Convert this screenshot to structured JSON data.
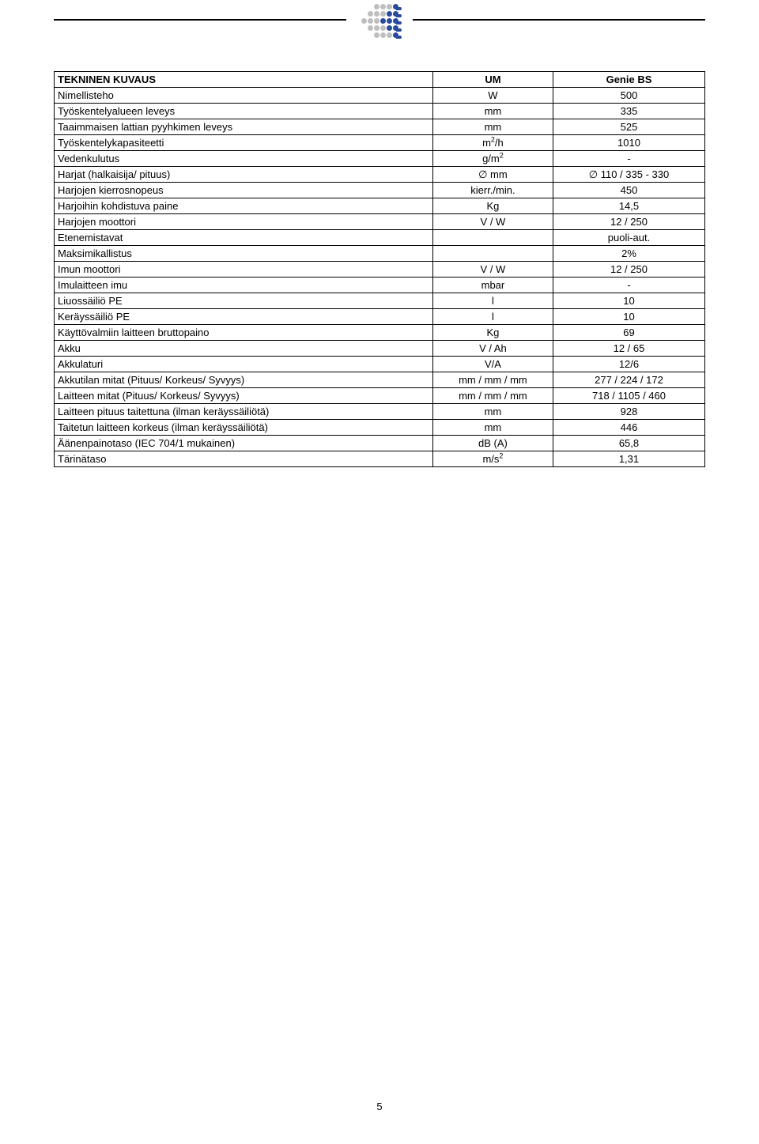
{
  "page_number": "5",
  "table": {
    "header": {
      "label": "TEKNINEN KUVAUS",
      "unit": "UM",
      "value": "Genie BS"
    },
    "rows": [
      {
        "label": "Nimellisteho",
        "unit": "W",
        "value": "500"
      },
      {
        "label": "Työskentelyalueen leveys",
        "unit": "mm",
        "value": "335"
      },
      {
        "label": "Taaimmaisen lattian pyyhkimen leveys",
        "unit": "mm",
        "value": "525"
      },
      {
        "label": "Työskentelykapasiteetti",
        "unit_html": "m<sup>2</sup>/h",
        "value": "1010"
      },
      {
        "label": "Vedenkulutus",
        "unit_html": "g/m<sup>2</sup>",
        "value": "-"
      },
      {
        "label": "Harjat (halkaisija/ pituus)",
        "unit": "∅ mm",
        "value": "∅ 110 / 335 - 330"
      },
      {
        "label": "Harjojen kierrosnopeus",
        "unit": "kierr./min.",
        "value": "450"
      },
      {
        "label": "Harjoihin kohdistuva paine",
        "unit": "Kg",
        "value": "14,5"
      },
      {
        "label": "Harjojen moottori",
        "unit": "V / W",
        "value": "12 / 250"
      },
      {
        "label": "Etenemistavat",
        "unit": "",
        "value": "puoli-aut."
      },
      {
        "label": "Maksimikallistus",
        "unit": "",
        "value": "2%"
      },
      {
        "label": "Imun moottori",
        "unit": "V / W",
        "value": "12 / 250"
      },
      {
        "label": "Imulaitteen imu",
        "unit": "mbar",
        "value": "-"
      },
      {
        "label": "Liuossäiliö PE",
        "unit": "l",
        "value": "10"
      },
      {
        "label": "Keräyssäiliö PE",
        "unit": "l",
        "value": "10"
      },
      {
        "label": "Käyttövalmiin laitteen bruttopaino",
        "unit": "Kg",
        "value": "69"
      },
      {
        "label": "Akku",
        "unit": "V / Ah",
        "value": "12 / 65"
      },
      {
        "label": "Akkulaturi",
        "unit": "V/A",
        "value": "12/6"
      },
      {
        "label": "Akkutilan mitat (Pituus/ Korkeus/ Syvyys)",
        "unit": "mm / mm / mm",
        "value": "277 / 224 / 172"
      },
      {
        "label": "Laitteen mitat (Pituus/ Korkeus/ Syvyys)",
        "unit": "mm / mm / mm",
        "value": "718 / 1105 / 460"
      },
      {
        "label": "Laitteen pituus taitettuna (ilman keräyssäiliötä)",
        "unit": "mm",
        "value": "928"
      },
      {
        "label": "Taitetun laitteen korkeus (ilman keräyssäiliötä)",
        "unit": "mm",
        "value": "446"
      },
      {
        "label": "Äänenpainotaso (IEC 704/1 mukainen)",
        "unit": "dB (A)",
        "value": "65,8"
      },
      {
        "label": "Tärinätaso",
        "unit_html": "m/s<sup>2</sup>",
        "value": "1,31"
      }
    ]
  }
}
